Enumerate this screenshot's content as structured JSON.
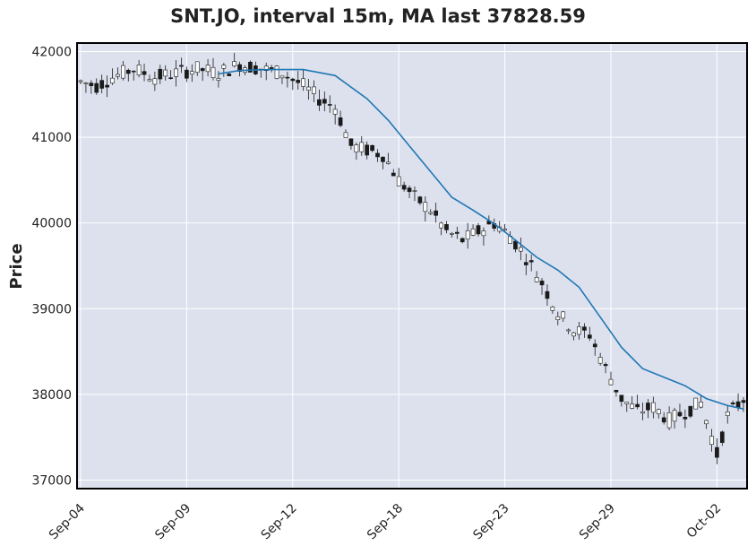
{
  "chart_data": {
    "type": "candlestick",
    "title": "SNT.JO, interval 15m, MA last 37828.59",
    "ylabel": "Price",
    "xlabel": "",
    "ylim": [
      36900,
      42100
    ],
    "grid": true,
    "background": "#dde1ee",
    "candle_color": "#1a1a1a",
    "ma_color": "#1f77b4",
    "y_ticks": [
      37000,
      38000,
      39000,
      40000,
      41000,
      42000
    ],
    "x_ticks": [
      "Sep-04",
      "Sep-09",
      "Sep-12",
      "Sep-18",
      "Sep-23",
      "Sep-29",
      "Oct-02"
    ],
    "x_tick_index": [
      0,
      20,
      40,
      60,
      80,
      100,
      120
    ],
    "n_bars": 126,
    "price_anchors": [
      [
        0,
        41650
      ],
      [
        3,
        41600
      ],
      [
        6,
        41700
      ],
      [
        10,
        41800
      ],
      [
        14,
        41700
      ],
      [
        18,
        41750
      ],
      [
        22,
        41800
      ],
      [
        26,
        41750
      ],
      [
        30,
        41850
      ],
      [
        34,
        41800
      ],
      [
        38,
        41750
      ],
      [
        42,
        41600
      ],
      [
        45,
        41450
      ],
      [
        48,
        41350
      ],
      [
        51,
        40900
      ],
      [
        54,
        40850
      ],
      [
        57,
        40800
      ],
      [
        60,
        40500
      ],
      [
        63,
        40300
      ],
      [
        66,
        40150
      ],
      [
        69,
        39900
      ],
      [
        72,
        39800
      ],
      [
        75,
        39900
      ],
      [
        78,
        40000
      ],
      [
        81,
        39850
      ],
      [
        84,
        39600
      ],
      [
        87,
        39300
      ],
      [
        90,
        38950
      ],
      [
        93,
        38750
      ],
      [
        96,
        38700
      ],
      [
        99,
        38300
      ],
      [
        102,
        37950
      ],
      [
        105,
        37800
      ],
      [
        108,
        37850
      ],
      [
        111,
        37700
      ],
      [
        114,
        37800
      ],
      [
        117,
        37900
      ],
      [
        120,
        37300
      ],
      [
        122,
        37750
      ],
      [
        125,
        37950
      ]
    ],
    "ma_series": [
      [
        26,
        41740
      ],
      [
        30,
        41780
      ],
      [
        36,
        41790
      ],
      [
        42,
        41790
      ],
      [
        48,
        41720
      ],
      [
        54,
        41450
      ],
      [
        58,
        41200
      ],
      [
        62,
        40900
      ],
      [
        66,
        40600
      ],
      [
        70,
        40300
      ],
      [
        74,
        40150
      ],
      [
        78,
        39990
      ],
      [
        82,
        39800
      ],
      [
        86,
        39600
      ],
      [
        90,
        39450
      ],
      [
        94,
        39250
      ],
      [
        98,
        38900
      ],
      [
        102,
        38550
      ],
      [
        106,
        38300
      ],
      [
        110,
        38200
      ],
      [
        114,
        38100
      ],
      [
        118,
        37950
      ],
      [
        122,
        37870
      ],
      [
        125,
        37828.59
      ]
    ]
  }
}
